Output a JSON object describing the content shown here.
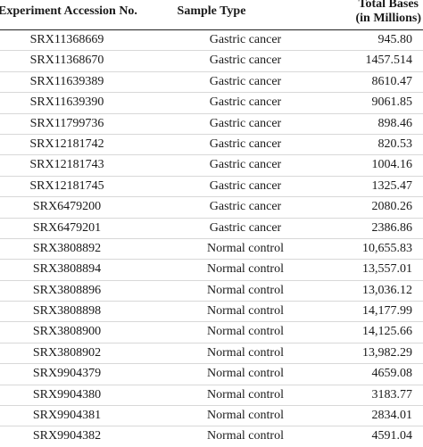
{
  "table": {
    "headers": {
      "accession": "Experiment Accession No.",
      "sample_type": "Sample Type",
      "total_bases_line1": "Total Bases",
      "total_bases_line2": "(in Millions)"
    },
    "rows": [
      {
        "accession": "SRX11368669",
        "sample_type": "Gastric cancer",
        "total_bases": "945.80"
      },
      {
        "accession": "SRX11368670",
        "sample_type": "Gastric cancer",
        "total_bases": "1457.514"
      },
      {
        "accession": "SRX11639389",
        "sample_type": "Gastric cancer",
        "total_bases": "8610.47"
      },
      {
        "accession": "SRX11639390",
        "sample_type": "Gastric cancer",
        "total_bases": "9061.85"
      },
      {
        "accession": "SRX11799736",
        "sample_type": "Gastric cancer",
        "total_bases": "898.46"
      },
      {
        "accession": "SRX12181742",
        "sample_type": "Gastric cancer",
        "total_bases": "820.53"
      },
      {
        "accession": "SRX12181743",
        "sample_type": "Gastric cancer",
        "total_bases": "1004.16"
      },
      {
        "accession": "SRX12181745",
        "sample_type": "Gastric cancer",
        "total_bases": "1325.47"
      },
      {
        "accession": "SRX6479200",
        "sample_type": "Gastric cancer",
        "total_bases": "2080.26"
      },
      {
        "accession": "SRX6479201",
        "sample_type": "Gastric cancer",
        "total_bases": "2386.86"
      },
      {
        "accession": "SRX3808892",
        "sample_type": "Normal control",
        "total_bases": "10,655.83"
      },
      {
        "accession": "SRX3808894",
        "sample_type": "Normal control",
        "total_bases": "13,557.01"
      },
      {
        "accession": "SRX3808896",
        "sample_type": "Normal control",
        "total_bases": "13,036.12"
      },
      {
        "accession": "SRX3808898",
        "sample_type": "Normal control",
        "total_bases": "14,177.99"
      },
      {
        "accession": "SRX3808900",
        "sample_type": "Normal control",
        "total_bases": "14,125.66"
      },
      {
        "accession": "SRX3808902",
        "sample_type": "Normal control",
        "total_bases": "13,982.29"
      },
      {
        "accession": "SRX9904379",
        "sample_type": "Normal control",
        "total_bases": "4659.08"
      },
      {
        "accession": "SRX9904380",
        "sample_type": "Normal control",
        "total_bases": "3183.77"
      },
      {
        "accession": "SRX9904381",
        "sample_type": "Normal control",
        "total_bases": "2834.01"
      },
      {
        "accession": "SRX9904382",
        "sample_type": "Normal control",
        "total_bases": "4591.04"
      }
    ]
  }
}
